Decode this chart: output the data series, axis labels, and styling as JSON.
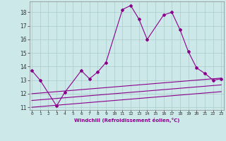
{
  "xlabel": "Windchill (Refroidissement éolien,°C)",
  "x": [
    0,
    1,
    2,
    3,
    4,
    5,
    6,
    7,
    8,
    9,
    10,
    11,
    12,
    13,
    14,
    15,
    16,
    17,
    18,
    19,
    20,
    21,
    22,
    23
  ],
  "line1_x": [
    0,
    1,
    3,
    4,
    6,
    7,
    8,
    9,
    11,
    12,
    13,
    14,
    16,
    17,
    18,
    19,
    20,
    21,
    22,
    23
  ],
  "line1_y": [
    13.7,
    13.0,
    11.1,
    12.1,
    13.7,
    13.1,
    13.6,
    14.3,
    18.2,
    18.5,
    17.5,
    16.0,
    17.8,
    18.0,
    16.7,
    15.1,
    13.9,
    13.5,
    13.0,
    13.1
  ],
  "line2": [
    12.0,
    12.05,
    12.1,
    12.15,
    12.2,
    12.25,
    12.3,
    12.35,
    12.4,
    12.45,
    12.5,
    12.55,
    12.6,
    12.65,
    12.7,
    12.75,
    12.8,
    12.85,
    12.9,
    12.95,
    13.0,
    13.05,
    13.1,
    13.15
  ],
  "line3": [
    11.5,
    11.55,
    11.6,
    11.65,
    11.7,
    11.75,
    11.8,
    11.85,
    11.9,
    11.95,
    12.0,
    12.05,
    12.1,
    12.15,
    12.2,
    12.25,
    12.3,
    12.35,
    12.4,
    12.45,
    12.5,
    12.55,
    12.6,
    12.65
  ],
  "line4": [
    11.0,
    11.05,
    11.1,
    11.15,
    11.2,
    11.25,
    11.3,
    11.35,
    11.4,
    11.45,
    11.5,
    11.55,
    11.6,
    11.65,
    11.7,
    11.75,
    11.8,
    11.85,
    11.9,
    11.95,
    12.0,
    12.05,
    12.1,
    12.15
  ],
  "color": "#8B008B",
  "ylim": [
    10.8,
    18.8
  ],
  "yticks": [
    11,
    12,
    13,
    14,
    15,
    16,
    17,
    18
  ],
  "bg_color": "#cce8e8",
  "grid_color": "#aacccc"
}
